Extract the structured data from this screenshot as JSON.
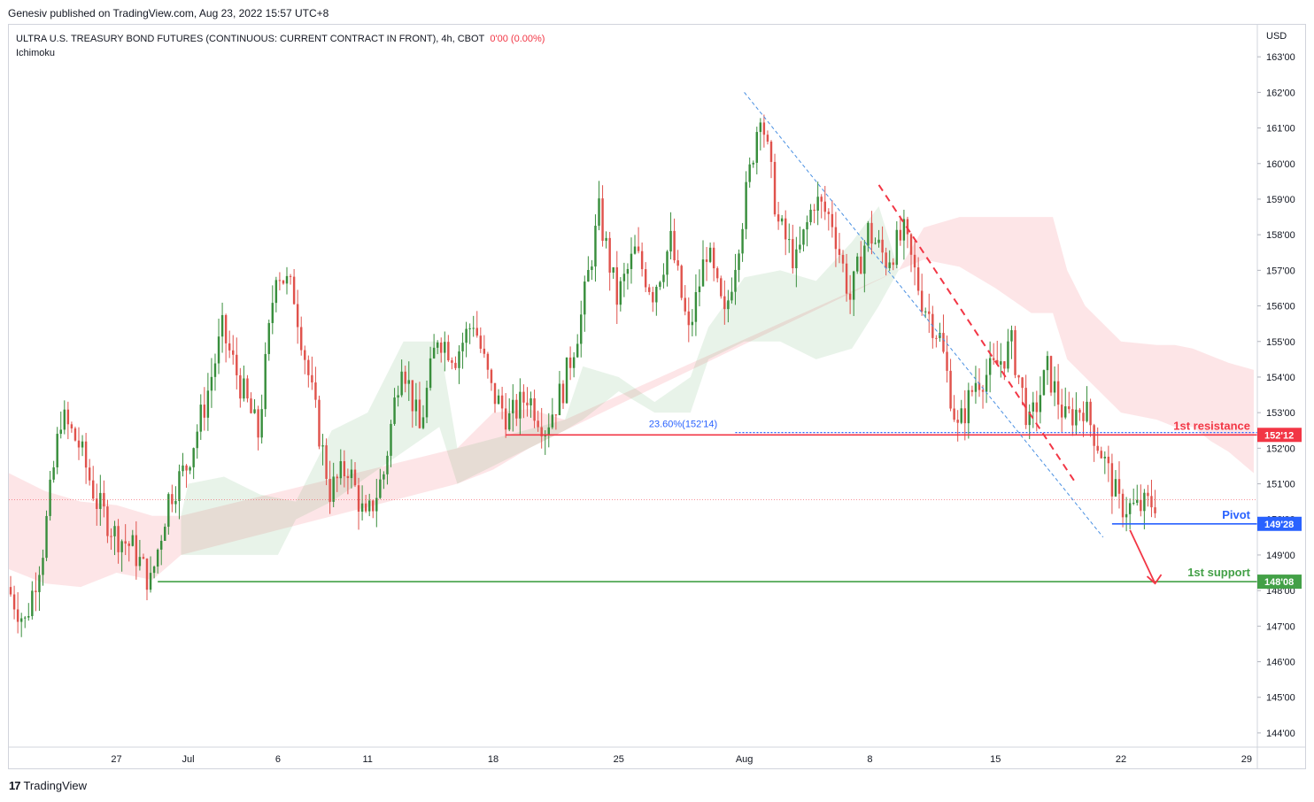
{
  "publisher": "Genesiv published on TradingView.com, Aug 23, 2022 15:57 UTC+8",
  "header": {
    "symbol": "ULTRA U.S. TREASURY BOND FUTURES (CONTINUOUS: CURRENT CONTRACT IN FRONT), 4h, CBOT",
    "change": "0'00 (0.00%)",
    "indicator": "Ichimoku"
  },
  "footer": {
    "brand": "TradingView",
    "logo": "17"
  },
  "colors": {
    "up": "#388e3c",
    "down": "#e0524c",
    "resistance": "#f23645",
    "pivot": "#2962ff",
    "support": "#43a047"
  },
  "chart_data": {
    "type": "candlestick",
    "currency": "USD",
    "x_ticks": [
      {
        "label": "27",
        "day": 6
      },
      {
        "label": "Jul",
        "day": 10
      },
      {
        "label": "6",
        "day": 15
      },
      {
        "label": "11",
        "day": 20
      },
      {
        "label": "18",
        "day": 27
      },
      {
        "label": "25",
        "day": 34
      },
      {
        "label": "Aug",
        "day": 41
      },
      {
        "label": "8",
        "day": 48
      },
      {
        "label": "15",
        "day": 55
      },
      {
        "label": "22",
        "day": 62
      },
      {
        "label": "29",
        "day": 69
      }
    ],
    "y_ticks": [
      "163'00",
      "162'00",
      "161'00",
      "160'00",
      "159'00",
      "158'00",
      "157'00",
      "156'00",
      "155'00",
      "154'00",
      "153'00",
      "152'00",
      "151'00",
      "150'00",
      "149'00",
      "148'00",
      "147'00",
      "146'00",
      "145'00",
      "144'00"
    ],
    "y_tick_values": [
      163,
      162,
      161,
      160,
      159,
      158,
      157,
      156,
      155,
      154,
      153,
      152,
      151,
      150,
      149,
      148,
      147,
      146,
      145,
      144
    ],
    "ylim": [
      143.6,
      163.9
    ],
    "xlim": [
      0,
      69.6
    ],
    "price_path": [
      [
        0,
        148.1
      ],
      [
        1,
        147.1
      ],
      [
        2,
        149.2
      ],
      [
        3,
        152.9
      ],
      [
        4,
        152.1
      ],
      [
        5,
        150.5
      ],
      [
        6,
        149.6
      ],
      [
        7,
        149.2
      ],
      [
        8,
        148.2
      ],
      [
        9,
        150.6
      ],
      [
        10,
        151.5
      ],
      [
        11,
        153.2
      ],
      [
        12,
        155.3
      ],
      [
        13,
        153.8
      ],
      [
        14,
        152.4
      ],
      [
        15,
        157.1
      ],
      [
        16,
        156.3
      ],
      [
        17,
        153.5
      ],
      [
        18,
        150.8
      ],
      [
        19,
        151.5
      ],
      [
        20,
        149.9
      ],
      [
        21,
        151.3
      ],
      [
        22,
        154.6
      ],
      [
        23,
        152.5
      ],
      [
        24,
        155.2
      ],
      [
        25,
        154.6
      ],
      [
        26,
        155.6
      ],
      [
        27,
        153.6
      ],
      [
        28,
        152.8
      ],
      [
        29,
        153.5
      ],
      [
        30,
        152.6
      ],
      [
        31,
        153.7
      ],
      [
        32,
        155.7
      ],
      [
        33,
        158.6
      ],
      [
        34,
        156.2
      ],
      [
        35,
        157.5
      ],
      [
        36,
        156.4
      ],
      [
        37,
        157.8
      ],
      [
        38,
        155.2
      ],
      [
        39,
        157.6
      ],
      [
        40,
        155.6
      ],
      [
        41,
        158.5
      ],
      [
        42,
        161.6
      ],
      [
        43,
        158.3
      ],
      [
        44,
        157.2
      ],
      [
        45,
        159.0
      ],
      [
        46,
        158.4
      ],
      [
        47,
        156.2
      ],
      [
        48,
        158.1
      ],
      [
        49,
        157.3
      ],
      [
        50,
        158.0
      ],
      [
        51,
        156.2
      ],
      [
        52,
        155.1
      ],
      [
        53,
        152.5
      ],
      [
        54,
        153.9
      ],
      [
        55,
        154.2
      ],
      [
        56,
        154.9
      ],
      [
        57,
        152.6
      ],
      [
        58,
        154.2
      ],
      [
        59,
        152.8
      ],
      [
        60,
        153.2
      ],
      [
        61,
        151.9
      ],
      [
        62,
        150.4
      ],
      [
        63,
        150.3
      ],
      [
        64,
        150.5
      ]
    ],
    "kumo_pink": [
      [
        0,
        151.3,
        148.6
      ],
      [
        2,
        150.8,
        148.2
      ],
      [
        4,
        150.5,
        148.1
      ],
      [
        6,
        150.4,
        148.5
      ],
      [
        8,
        150.1,
        148.3
      ],
      [
        9.6,
        150.1,
        149.0
      ],
      [
        25,
        152.0,
        151.0
      ],
      [
        27,
        153.0,
        151.4
      ],
      [
        29,
        153.1,
        152.0
      ],
      [
        31,
        152.8,
        152.5
      ],
      [
        49.6,
        157.0,
        157.0
      ],
      [
        51,
        158.2,
        157.3
      ],
      [
        53,
        158.5,
        157.1
      ],
      [
        55,
        158.5,
        156.5
      ],
      [
        57,
        158.5,
        155.8
      ],
      [
        58.2,
        158.5,
        155.8
      ],
      [
        59,
        157.0,
        154.5
      ],
      [
        60,
        156.0,
        154.0
      ],
      [
        62,
        155.0,
        153.0
      ],
      [
        64,
        154.9,
        152.8
      ],
      [
        65,
        154.9,
        152.6
      ],
      [
        66,
        154.8,
        152.6
      ],
      [
        67,
        154.6,
        152.2
      ],
      [
        68,
        154.4,
        151.9
      ],
      [
        69.4,
        154.2,
        151.3
      ]
    ],
    "kumo_green": [
      [
        9.6,
        150.1,
        149.0
      ],
      [
        10,
        151.0,
        149.0
      ],
      [
        12,
        151.2,
        149.0
      ],
      [
        14,
        150.7,
        149.0
      ],
      [
        15,
        150.6,
        149.0
      ],
      [
        16,
        150.5,
        150.0
      ],
      [
        18,
        152.5,
        150.5
      ],
      [
        20,
        153.0,
        151.2
      ],
      [
        22,
        155.0,
        151.9
      ],
      [
        24,
        155.0,
        152.6
      ],
      [
        25,
        152.0,
        151.0
      ],
      [
        31,
        152.8,
        152.5
      ],
      [
        32,
        154.3,
        152.8
      ],
      [
        34,
        154.0,
        153.6
      ],
      [
        36,
        153.3,
        153.0
      ],
      [
        38,
        154.0,
        153.0
      ],
      [
        39,
        155.4,
        154.5
      ],
      [
        41,
        156.8,
        155.0
      ],
      [
        43,
        157.0,
        155.0
      ],
      [
        45,
        156.7,
        154.5
      ],
      [
        47,
        157.8,
        154.8
      ],
      [
        48.5,
        158.8,
        156.0
      ],
      [
        49.6,
        157.0,
        157.0
      ]
    ],
    "annotations": [
      {
        "label": "1st resistance",
        "price_label": "152'12",
        "price": 152.375
      },
      {
        "label": "Pivot",
        "price_label": "149'28",
        "price": 149.875
      },
      {
        "label": "1st support",
        "price_label": "148'08",
        "price": 148.25
      },
      {
        "label": "23.60%(152'14)",
        "price": 152.44
      }
    ],
    "current_price": 150.55,
    "upper_trend": [
      [
        48.5,
        159.4
      ],
      [
        59.5,
        151.0
      ]
    ],
    "lower_trend": [
      [
        41,
        162.0
      ],
      [
        61,
        149.5
      ]
    ],
    "forecast_arrow": [
      [
        62.5,
        149.7
      ],
      [
        63.9,
        148.2
      ]
    ]
  }
}
